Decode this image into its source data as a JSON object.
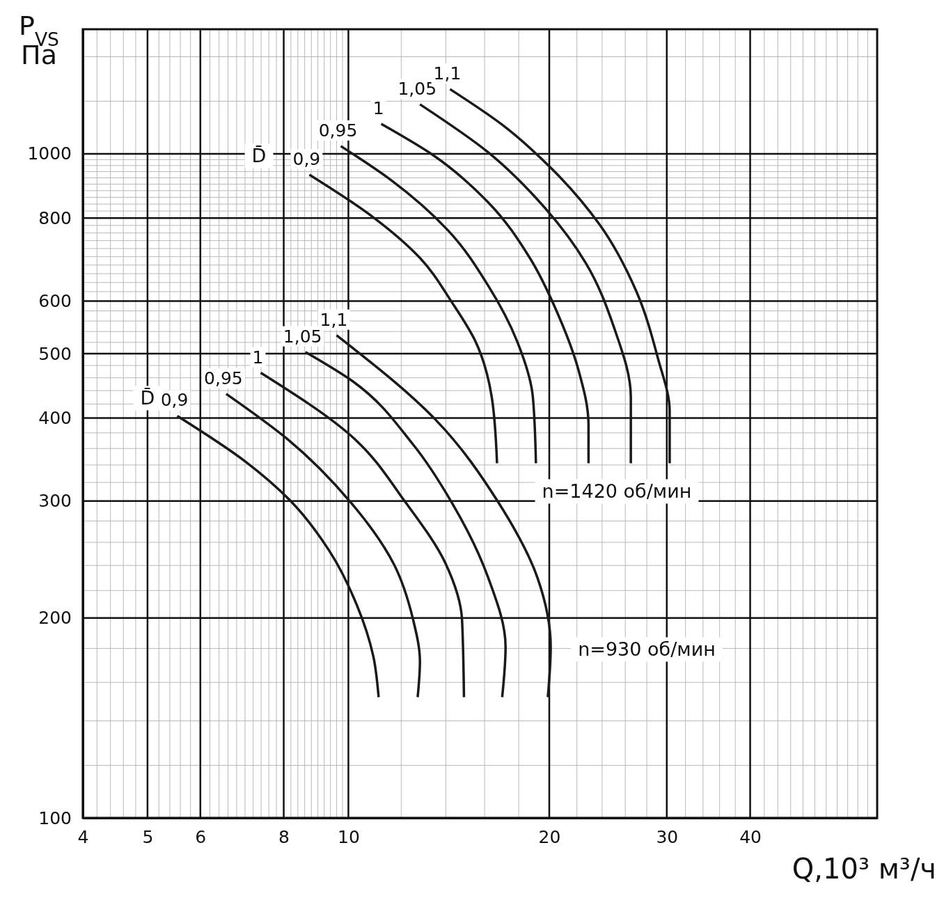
{
  "chart_data": {
    "type": "line",
    "xlabel": "Q,10³ м³/ч",
    "ylabel": "P$_{VS}$ Па",
    "log": "xy",
    "grid": true,
    "marker": "none",
    "line_style": "solid",
    "xlim": [
      4,
      62
    ],
    "ylim": [
      100,
      1540
    ],
    "xticks": [
      4,
      5,
      6,
      8,
      10,
      20,
      30,
      40
    ],
    "yticks": [
      100,
      200,
      300,
      400,
      500,
      600,
      800,
      1000
    ],
    "series": [
      {
        "name": "0,9",
        "color": "#1a1a1a",
        "x": [
          8.74,
          10.85,
          12.8,
          14.3,
          15.5,
          16.4,
          16.7
        ],
        "values": [
          930,
          805,
          697,
          597,
          522,
          430,
          342
        ]
      },
      {
        "name": "0,95",
        "color": "#1a1a1a",
        "x": [
          9.74,
          11.6,
          14.1,
          16.2,
          17.9,
          18.9,
          19.1
        ],
        "values": [
          1027,
          912,
          767,
          633,
          522,
          430,
          342
        ]
      },
      {
        "name": "1",
        "color": "#1a1a1a",
        "x": [
          11.2,
          13.4,
          16.2,
          18.7,
          20.6,
          22.1,
          22.9,
          22.9
        ],
        "values": [
          1109,
          995,
          845,
          697,
          574,
          474,
          391,
          342
        ]
      },
      {
        "name": "1,05",
        "color": "#1a1a1a",
        "x": [
          12.8,
          16.2,
          19.7,
          22.7,
          25.0,
          26.5,
          26.5
        ],
        "values": [
          1187,
          1005,
          829,
          684,
          548,
          430,
          342
        ]
      },
      {
        "name": "1,1",
        "color": "#1a1a1a",
        "x": [
          14.2,
          17.0,
          20.2,
          23.8,
          27.0,
          29.1,
          30.3,
          30.3
        ],
        "values": [
          1251,
          1106,
          948,
          782,
          621,
          492,
          410,
          342
        ]
      },
      {
        "name": "0,9",
        "color": "#1a1a1a",
        "x": [
          5.54,
          7.01,
          8.17,
          9.35,
          10.3,
          10.9,
          11.1
        ],
        "values": [
          403,
          344,
          301,
          253,
          209,
          175,
          152
        ]
      },
      {
        "name": "0,95",
        "color": "#1a1a1a",
        "x": [
          6.56,
          8.1,
          10.1,
          11.7,
          12.5,
          12.8,
          12.7
        ],
        "values": [
          435,
          372,
          298,
          241,
          199,
          172,
          152
        ]
      },
      {
        "name": "1",
        "color": "#1a1a1a",
        "x": [
          7.39,
          10.1,
          12.2,
          14.0,
          14.8,
          14.9
        ],
        "values": [
          468,
          376,
          298,
          241,
          199,
          152
        ]
      },
      {
        "name": "1,05",
        "color": "#1a1a1a",
        "x": [
          8.62,
          10.1,
          12.5,
          14.3,
          16.2,
          17.2,
          17.0
        ],
        "values": [
          503,
          456,
          365,
          298,
          230,
          181,
          152
        ]
      },
      {
        "name": "1,1",
        "color": "#1a1a1a",
        "x": [
          9.6,
          13.5,
          16.8,
          19.2,
          20.1,
          19.9
        ],
        "values": [
          533,
          398,
          298,
          230,
          181,
          152
        ]
      }
    ],
    "annotations": [
      "D̄",
      "D̄",
      "n=1420 об/мин",
      "n=930 об/мин"
    ]
  }
}
